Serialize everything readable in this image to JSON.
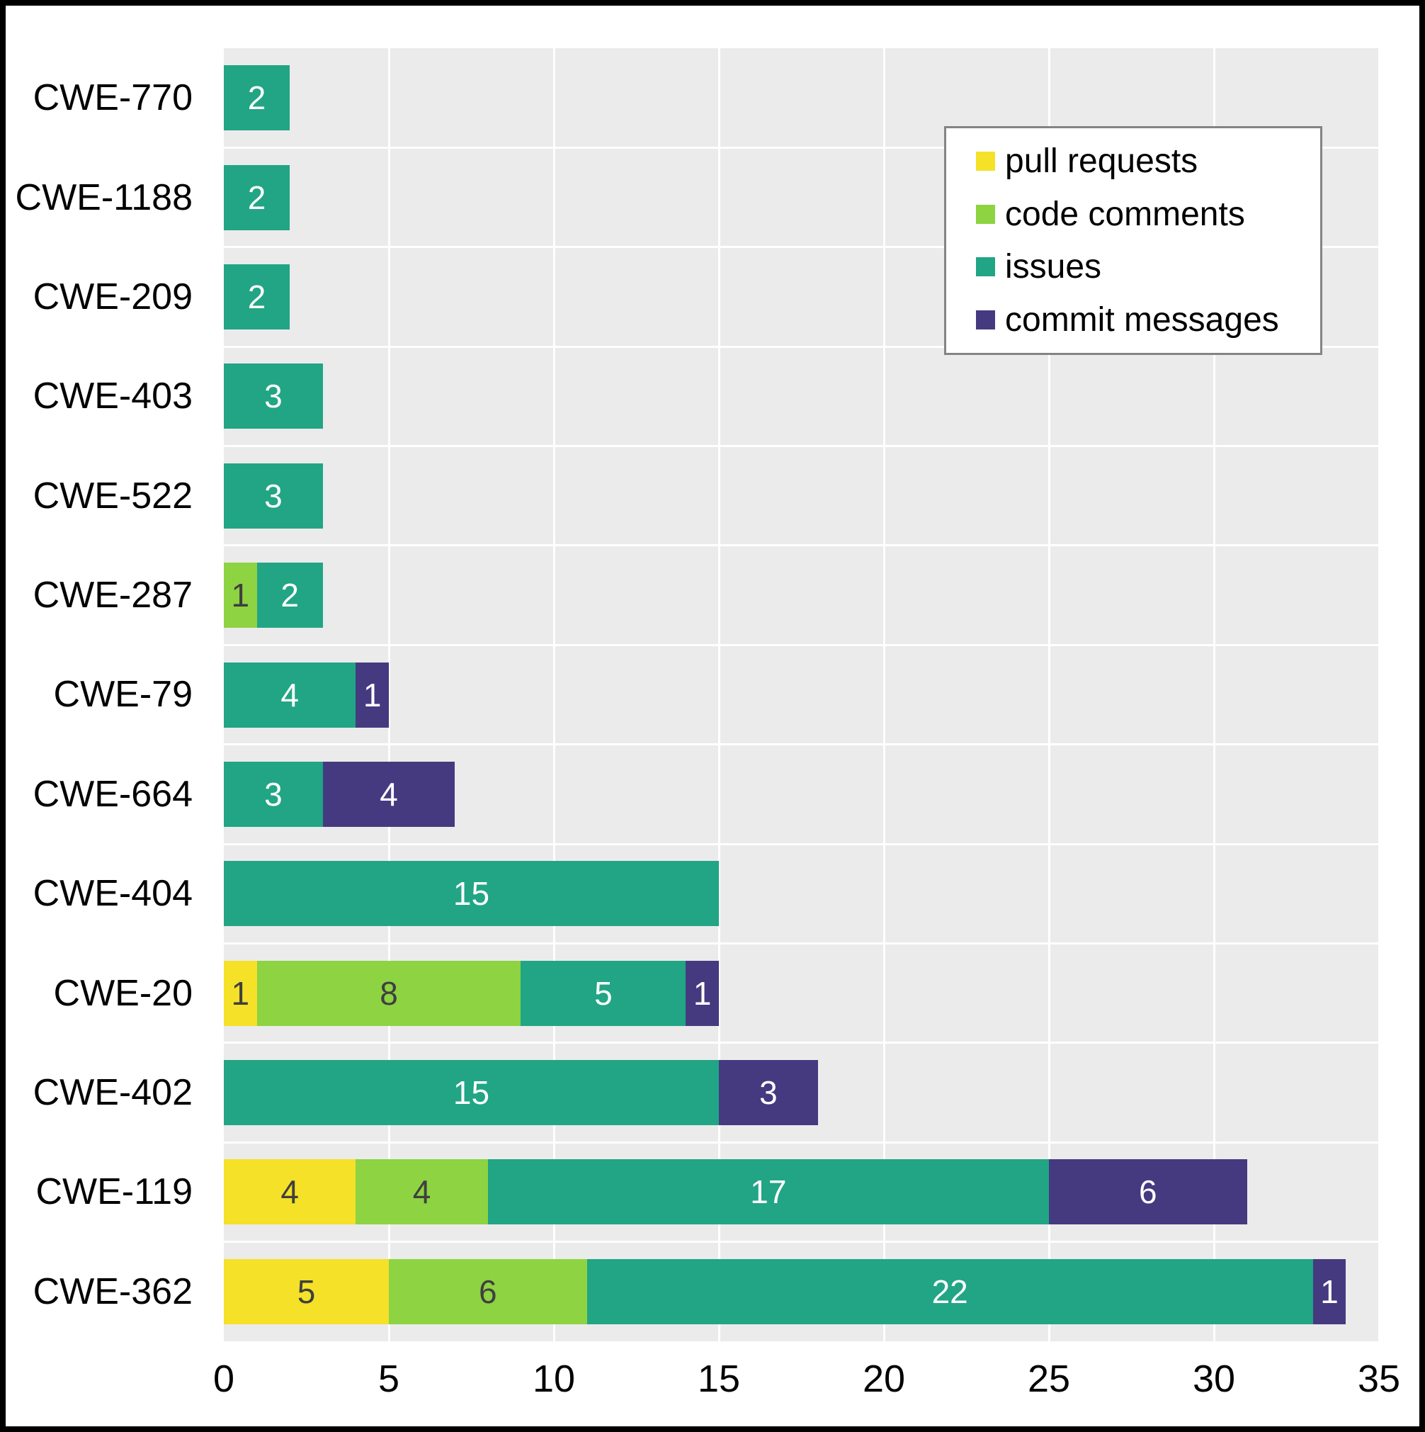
{
  "chart_data": {
    "type": "bar",
    "orientation": "horizontal",
    "stacked": true,
    "title": "",
    "xlabel": "",
    "ylabel": "",
    "categories": [
      "CWE-770",
      "CWE-1188",
      "CWE-209",
      "CWE-403",
      "CWE-522",
      "CWE-287",
      "CWE-79",
      "CWE-664",
      "CWE-404",
      "CWE-20",
      "CWE-402",
      "CWE-119",
      "CWE-362"
    ],
    "series": [
      {
        "name": "pull requests",
        "color": "#F5E127",
        "label_color": "#3F3F3F",
        "values": [
          0,
          0,
          0,
          0,
          0,
          0,
          0,
          0,
          0,
          1,
          0,
          4,
          5
        ]
      },
      {
        "name": "code comments",
        "color": "#8DD342",
        "label_color": "#3F3F3F",
        "values": [
          0,
          0,
          0,
          0,
          0,
          1,
          0,
          0,
          0,
          8,
          0,
          4,
          6
        ]
      },
      {
        "name": "issues",
        "color": "#21A585",
        "label_color": "#FFFFFF",
        "values": [
          2,
          2,
          2,
          3,
          3,
          2,
          4,
          3,
          15,
          5,
          15,
          17,
          22
        ]
      },
      {
        "name": "commit messages",
        "color": "#453A80",
        "label_color": "#FFFFFF",
        "values": [
          0,
          0,
          0,
          0,
          0,
          0,
          1,
          4,
          0,
          1,
          3,
          6,
          1
        ]
      }
    ],
    "totals": [
      2,
      2,
      2,
      3,
      3,
      3,
      5,
      7,
      15,
      15,
      18,
      31,
      34
    ],
    "xlim": [
      0,
      35
    ],
    "x_ticks": [
      0,
      5,
      10,
      15,
      20,
      25,
      30,
      35
    ],
    "grid": "white major vertical gridlines every 5 units and horizontal band-boundary lines on gray panel",
    "legend_position": "upper-right-inside",
    "colors": {
      "panel_background": "#EBEBEB",
      "outer_background": "#FFFFFF",
      "page_border": "#000000",
      "gridline": "#FFFFFF",
      "axis_text": "#000000",
      "legend_border": "#848484",
      "legend_background": "#FFFFFF"
    }
  }
}
